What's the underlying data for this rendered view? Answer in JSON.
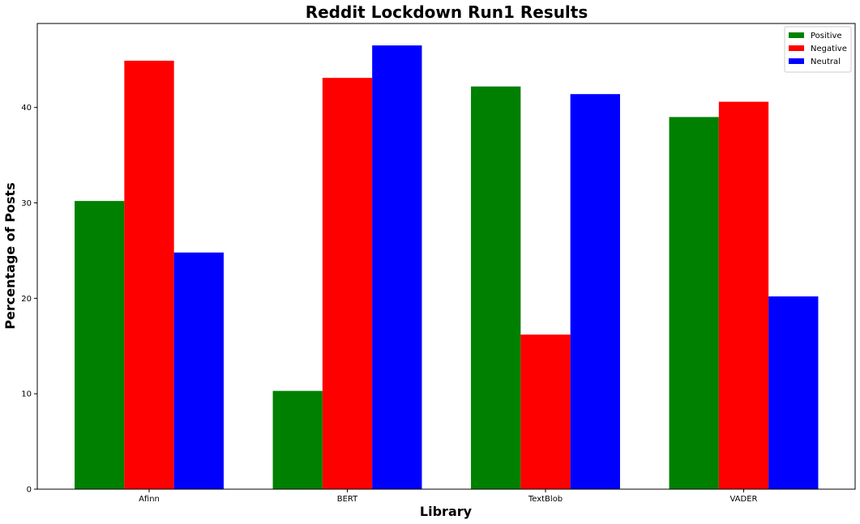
{
  "chart_data": {
    "type": "bar",
    "title": "Reddit Lockdown Run1 Results",
    "xlabel": "Library",
    "ylabel": "Percentage of Posts",
    "categories": [
      "Afinn",
      "BERT",
      "TextBlob",
      "VADER"
    ],
    "series": [
      {
        "name": "Positive",
        "color": "#008000",
        "values": [
          30.2,
          10.3,
          42.2,
          39.0
        ]
      },
      {
        "name": "Negative",
        "color": "#ff0000",
        "values": [
          44.9,
          43.1,
          16.2,
          40.6
        ]
      },
      {
        "name": "Neutral",
        "color": "#0000ff",
        "values": [
          24.8,
          46.5,
          41.4,
          20.2
        ]
      }
    ],
    "yticks": [
      0,
      10,
      20,
      30,
      40
    ],
    "ylim": [
      0,
      48.8
    ],
    "grid": false,
    "legend_position": "top-right"
  }
}
